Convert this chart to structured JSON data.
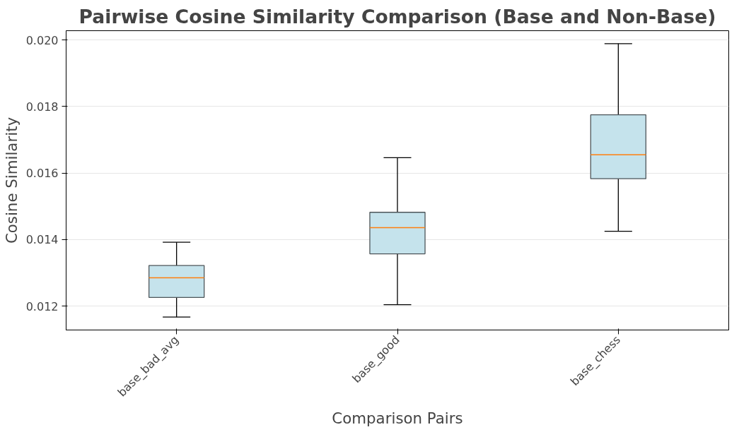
{
  "chart_data": {
    "type": "box",
    "title": "Pairwise Cosine Similarity Comparison (Base and Non-Base)",
    "xlabel": "Comparison Pairs",
    "ylabel": "Cosine Similarity",
    "categories": [
      "base_bad_avg",
      "base_good",
      "base_chess"
    ],
    "boxes": [
      {
        "low": 0.01167,
        "q1": 0.01226,
        "median": 0.01285,
        "q3": 0.01322,
        "high": 0.01392
      },
      {
        "low": 0.01204,
        "q1": 0.01357,
        "median": 0.01436,
        "q3": 0.01482,
        "high": 0.01646
      },
      {
        "low": 0.01425,
        "q1": 0.01583,
        "median": 0.01655,
        "q3": 0.01775,
        "high": 0.01989
      }
    ],
    "color": "#c5e3ec",
    "ylim": [
      0.01128,
      0.02028
    ],
    "yticks": [
      0.012,
      0.014,
      0.016,
      0.018,
      {
        "value": 0.02,
        "label": "0.020"
      }
    ],
    "grid": "y"
  }
}
